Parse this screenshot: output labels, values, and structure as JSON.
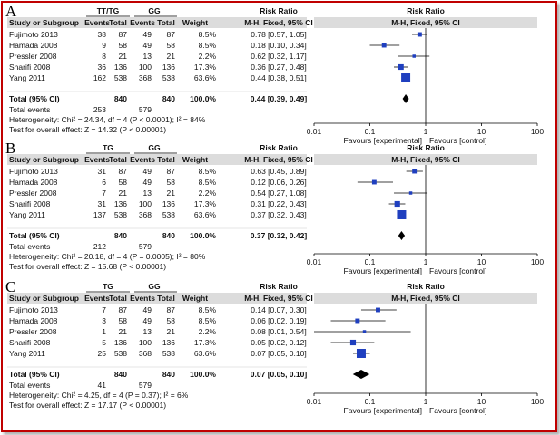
{
  "chart_data": [
    {
      "type": "forest",
      "panel_label": "A",
      "group1_label": "TT/TG",
      "group2_label": "GG",
      "headers": {
        "study": "Study or Subgroup",
        "events1": "Events",
        "total1": "Total",
        "events2": "Events",
        "total2": "Total",
        "weight": "Weight",
        "effect_title": "Risk Ratio",
        "effect_method": "M-H, Fixed, 95% CI",
        "plot_title": "Risk Ratio",
        "plot_method": "M-H, Fixed, 95% CI"
      },
      "studies": [
        {
          "name": "Fujimoto 2013",
          "events1": "38",
          "total1": "87",
          "events2": "49",
          "total2": "87",
          "weight": "8.5%",
          "ci_text": "0.78 [0.57, 1.05]",
          "rr": 0.78,
          "lo": 0.57,
          "hi": 1.05,
          "w": 8.5
        },
        {
          "name": "Hamada 2008",
          "events1": "9",
          "total1": "58",
          "events2": "49",
          "total2": "58",
          "weight": "8.5%",
          "ci_text": "0.18 [0.10, 0.34]",
          "rr": 0.18,
          "lo": 0.1,
          "hi": 0.34,
          "w": 8.5
        },
        {
          "name": "Pressler 2008",
          "events1": "8",
          "total1": "21",
          "events2": "13",
          "total2": "21",
          "weight": "2.2%",
          "ci_text": "0.62 [0.32, 1.17]",
          "rr": 0.62,
          "lo": 0.32,
          "hi": 1.17,
          "w": 2.2
        },
        {
          "name": "Sharifi 2008",
          "events1": "36",
          "total1": "136",
          "events2": "100",
          "total2": "136",
          "weight": "17.3%",
          "ci_text": "0.36 [0.27, 0.48]",
          "rr": 0.36,
          "lo": 0.27,
          "hi": 0.48,
          "w": 17.3
        },
        {
          "name": "Yang 2011",
          "events1": "162",
          "total1": "538",
          "events2": "368",
          "total2": "538",
          "weight": "63.6%",
          "ci_text": "0.44 [0.38, 0.51]",
          "rr": 0.44,
          "lo": 0.38,
          "hi": 0.51,
          "w": 63.6
        }
      ],
      "total": {
        "label": "Total (95% CI)",
        "total1": "840",
        "total2": "840",
        "weight": "100.0%",
        "ci_text": "0.44 [0.39, 0.49]",
        "rr": 0.44,
        "lo": 0.39,
        "hi": 0.49
      },
      "total_events": {
        "label": "Total events",
        "events1": "253",
        "events2": "579"
      },
      "heterogeneity": "Heterogeneity: Chi² = 24.34, df = 4 (P < 0.0001); I² = 84%",
      "overall_effect": "Test for overall effect: Z = 14.32 (P < 0.00001)",
      "x_axis": {
        "scale": "log",
        "ticks": [
          0.01,
          0.1,
          1,
          10,
          100
        ],
        "tick_labels": [
          "0.01",
          "0.1",
          "1",
          "10",
          "100"
        ]
      },
      "favours_left": "Favours [experimental]",
      "favours_right": "Favours [control]"
    },
    {
      "type": "forest",
      "panel_label": "B",
      "group1_label": "TG",
      "group2_label": "GG",
      "headers": {
        "study": "Study or Subgroup",
        "events1": "Events",
        "total1": "Total",
        "events2": "Events",
        "total2": "Total",
        "weight": "Weight",
        "effect_title": "Risk Ratio",
        "effect_method": "M-H, Fixed, 95% CI",
        "plot_title": "Risk Ratio",
        "plot_method": "M-H, Fixed, 95% CI"
      },
      "studies": [
        {
          "name": "Fujimoto 2013",
          "events1": "31",
          "total1": "87",
          "events2": "49",
          "total2": "87",
          "weight": "8.5%",
          "ci_text": "0.63 [0.45, 0.89]",
          "rr": 0.63,
          "lo": 0.45,
          "hi": 0.89,
          "w": 8.5
        },
        {
          "name": "Hamada 2008",
          "events1": "6",
          "total1": "58",
          "events2": "49",
          "total2": "58",
          "weight": "8.5%",
          "ci_text": "0.12 [0.06, 0.26]",
          "rr": 0.12,
          "lo": 0.06,
          "hi": 0.26,
          "w": 8.5
        },
        {
          "name": "Pressler 2008",
          "events1": "7",
          "total1": "21",
          "events2": "13",
          "total2": "21",
          "weight": "2.2%",
          "ci_text": "0.54 [0.27, 1.08]",
          "rr": 0.54,
          "lo": 0.27,
          "hi": 1.08,
          "w": 2.2
        },
        {
          "name": "Sharifi 2008",
          "events1": "31",
          "total1": "136",
          "events2": "100",
          "total2": "136",
          "weight": "17.3%",
          "ci_text": "0.31 [0.22, 0.43]",
          "rr": 0.31,
          "lo": 0.22,
          "hi": 0.43,
          "w": 17.3
        },
        {
          "name": "Yang 2011",
          "events1": "137",
          "total1": "538",
          "events2": "368",
          "total2": "538",
          "weight": "63.6%",
          "ci_text": "0.37 [0.32, 0.43]",
          "rr": 0.37,
          "lo": 0.32,
          "hi": 0.43,
          "w": 63.6
        }
      ],
      "total": {
        "label": "Total (95% CI)",
        "total1": "840",
        "total2": "840",
        "weight": "100.0%",
        "ci_text": "0.37 [0.32, 0.42]",
        "rr": 0.37,
        "lo": 0.32,
        "hi": 0.42
      },
      "total_events": {
        "label": "Total events",
        "events1": "212",
        "events2": "579"
      },
      "heterogeneity": "Heterogeneity: Chi² = 20.18, df = 4 (P = 0.0005); I² = 80%",
      "overall_effect": "Test for overall effect: Z = 15.68 (P < 0.00001)",
      "x_axis": {
        "scale": "log",
        "ticks": [
          0.01,
          0.1,
          1,
          10,
          100
        ],
        "tick_labels": [
          "0.01",
          "0.1",
          "1",
          "10",
          "100"
        ]
      },
      "favours_left": "Favours [experimental]",
      "favours_right": "Favours [control]"
    },
    {
      "type": "forest",
      "panel_label": "C",
      "group1_label": "TG",
      "group2_label": "GG",
      "headers": {
        "study": "Study or Subgroup",
        "events1": "Events",
        "total1": "Total",
        "events2": "Events",
        "total2": "Total",
        "weight": "Weight",
        "effect_title": "Risk Ratio",
        "effect_method": "M-H, Fixed, 95% CI",
        "plot_title": "Risk Ratio",
        "plot_method": "M-H, Fixed, 95% CI"
      },
      "studies": [
        {
          "name": "Fujimoto 2013",
          "events1": "7",
          "total1": "87",
          "events2": "49",
          "total2": "87",
          "weight": "8.5%",
          "ci_text": "0.14 [0.07, 0.30]",
          "rr": 0.14,
          "lo": 0.07,
          "hi": 0.3,
          "w": 8.5
        },
        {
          "name": "Hamada 2008",
          "events1": "3",
          "total1": "58",
          "events2": "49",
          "total2": "58",
          "weight": "8.5%",
          "ci_text": "0.06 [0.02, 0.19]",
          "rr": 0.06,
          "lo": 0.02,
          "hi": 0.19,
          "w": 8.5
        },
        {
          "name": "Pressler 2008",
          "events1": "1",
          "total1": "21",
          "events2": "13",
          "total2": "21",
          "weight": "2.2%",
          "ci_text": "0.08 [0.01, 0.54]",
          "rr": 0.08,
          "lo": 0.01,
          "hi": 0.54,
          "w": 2.2
        },
        {
          "name": "Sharifi 2008",
          "events1": "5",
          "total1": "136",
          "events2": "100",
          "total2": "136",
          "weight": "17.3%",
          "ci_text": "0.05 [0.02, 0.12]",
          "rr": 0.05,
          "lo": 0.02,
          "hi": 0.12,
          "w": 17.3
        },
        {
          "name": "Yang 2011",
          "events1": "25",
          "total1": "538",
          "events2": "368",
          "total2": "538",
          "weight": "63.6%",
          "ci_text": "0.07 [0.05, 0.10]",
          "rr": 0.07,
          "lo": 0.05,
          "hi": 0.1,
          "w": 63.6
        }
      ],
      "total": {
        "label": "Total (95% CI)",
        "total1": "840",
        "total2": "840",
        "weight": "100.0%",
        "ci_text": "0.07 [0.05, 0.10]",
        "rr": 0.07,
        "lo": 0.05,
        "hi": 0.1
      },
      "total_events": {
        "label": "Total events",
        "events1": "41",
        "events2": "579"
      },
      "heterogeneity": "Heterogeneity: Chi² = 4.25, df = 4 (P = 0.37); I² = 6%",
      "overall_effect": "Test for overall effect: Z = 17.17 (P < 0.00001)",
      "x_axis": {
        "scale": "log",
        "ticks": [
          0.01,
          0.1,
          1,
          10,
          100
        ],
        "tick_labels": [
          "0.01",
          "0.1",
          "1",
          "10",
          "100"
        ]
      },
      "favours_left": "Favours [experimental]",
      "favours_right": "Favours [control]"
    }
  ],
  "colors": {
    "frame_border": "#c00000",
    "marker_fill": "#1f3fbf",
    "header_bar": "#dcdcdc",
    "line": "#000000"
  }
}
